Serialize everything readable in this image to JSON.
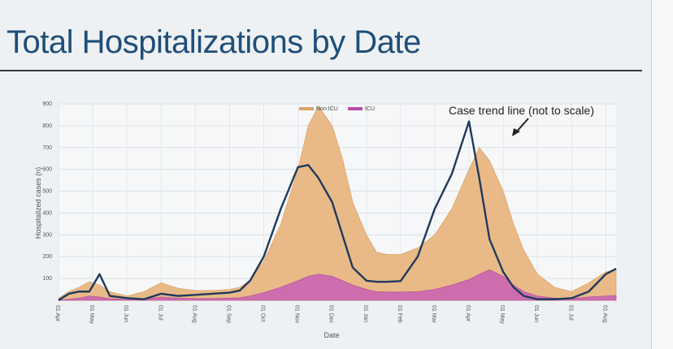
{
  "slide": {
    "title": "Total Hospitalizations by Date"
  },
  "chart_data": {
    "type": "area",
    "ylabel": "Hospitalized cases (n)",
    "xlabel": "Date",
    "ylim": [
      0,
      900
    ],
    "yticks": [
      100,
      200,
      300,
      400,
      500,
      600,
      700,
      800,
      900
    ],
    "x_tick_labels": [
      "01 Apr",
      "01 May",
      "01 Jun",
      "01 Jul",
      "01 Aug",
      "01 Sep",
      "01 Oct",
      "01 Nov",
      "01 Dec",
      "01 Jan",
      "01 Feb",
      "01 Mar",
      "01 Apr",
      "01 May",
      "01 Jun",
      "01 Jul",
      "01 Aug"
    ],
    "legend": {
      "placement": "top-center",
      "entries": [
        "Non ICU",
        "ICU"
      ]
    },
    "grid": true,
    "annotation": "Case trend line (not to scale)",
    "colors": {
      "non_icu": "#e8b27a",
      "icu": "#c85fb4",
      "trend": "#1f3a5c"
    },
    "x": [
      0,
      0.3,
      0.6,
      0.9,
      1.2,
      1.5,
      2,
      2.5,
      3,
      3.5,
      4,
      4.5,
      5,
      5.3,
      5.6,
      6,
      6.5,
      7,
      7.3,
      7.6,
      8,
      8.3,
      8.6,
      9,
      9.3,
      9.6,
      10,
      10.5,
      11,
      11.5,
      12,
      12.3,
      12.6,
      13,
      13.3,
      13.6,
      14,
      14.5,
      15,
      15.5,
      16,
      16.3
    ],
    "series": [
      {
        "name": "Non ICU",
        "values": [
          10,
          40,
          60,
          85,
          70,
          40,
          20,
          40,
          80,
          55,
          45,
          45,
          50,
          60,
          90,
          180,
          350,
          600,
          800,
          890,
          800,
          650,
          450,
          300,
          220,
          210,
          210,
          240,
          300,
          420,
          600,
          700,
          640,
          500,
          350,
          230,
          120,
          60,
          40,
          80,
          130,
          140
        ]
      },
      {
        "name": "ICU",
        "values": [
          0,
          5,
          10,
          20,
          15,
          8,
          3,
          5,
          15,
          10,
          8,
          8,
          10,
          12,
          20,
          35,
          60,
          90,
          110,
          120,
          110,
          90,
          70,
          50,
          40,
          38,
          38,
          40,
          50,
          70,
          95,
          120,
          140,
          110,
          70,
          40,
          20,
          10,
          8,
          15,
          20,
          22
        ]
      },
      {
        "name": "Case trend",
        "values": [
          0,
          30,
          40,
          40,
          120,
          20,
          10,
          5,
          30,
          20,
          25,
          30,
          35,
          45,
          90,
          200,
          420,
          610,
          620,
          560,
          450,
          300,
          150,
          90,
          85,
          85,
          88,
          200,
          420,
          580,
          820,
          560,
          280,
          130,
          60,
          20,
          5,
          5,
          10,
          40,
          120,
          145
        ]
      }
    ]
  }
}
